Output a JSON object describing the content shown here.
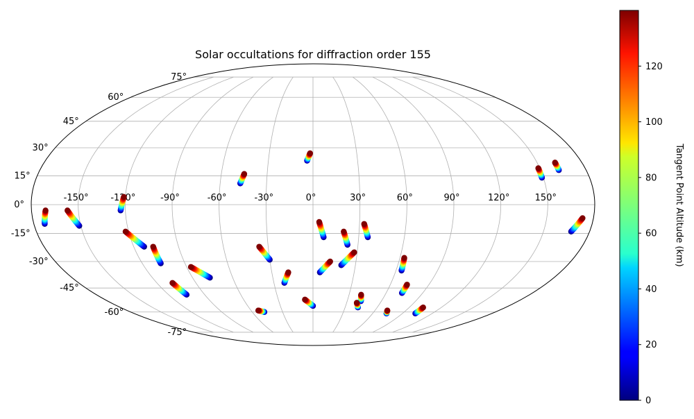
{
  "chart_data": {
    "type": "scatter",
    "projection": "mollweide",
    "title": "Solar occultations for diffraction order 155",
    "lon_ticks": [
      "-150°",
      "-120°",
      "-90°",
      "-60°",
      "-30°",
      "0°",
      "30°",
      "60°",
      "90°",
      "120°",
      "150°"
    ],
    "lon_tick_values": [
      -150,
      -120,
      -90,
      -60,
      -30,
      0,
      30,
      60,
      90,
      120,
      150
    ],
    "lat_ticks": [
      "75°",
      "60°",
      "45°",
      "30°",
      "15°",
      "0°",
      "-15°",
      "-30°",
      "-45°",
      "-60°",
      "-75°"
    ],
    "lat_tick_values": [
      75,
      60,
      45,
      30,
      15,
      0,
      -15,
      -30,
      -45,
      -60,
      -75
    ],
    "grid": true,
    "colorbar": {
      "label": "Tangent Point Altitude (km)",
      "min": 0,
      "max": 140,
      "ticks": [
        "0",
        "20",
        "40",
        "60",
        "80",
        "100",
        "120"
      ],
      "tick_values": [
        0,
        20,
        40,
        60,
        80,
        100,
        120
      ],
      "colormap": "jet"
    },
    "occultations": [
      {
        "lon_start": -171,
        "lat_start": -3,
        "lon_end": -173,
        "lat_end": -10
      },
      {
        "lon_start": -157,
        "lat_start": -3,
        "lon_end": -151,
        "lat_end": -11
      },
      {
        "lon_start": -121,
        "lat_start": 4,
        "lon_end": -123,
        "lat_end": -3
      },
      {
        "lon_start": -122,
        "lat_start": -14,
        "lon_end": -113,
        "lat_end": -22
      },
      {
        "lon_start": -107,
        "lat_start": -22,
        "lon_end": -107,
        "lat_end": -31
      },
      {
        "lon_start": -108,
        "lat_start": -42,
        "lon_end": -105,
        "lat_end": -49
      },
      {
        "lon_start": -87,
        "lat_start": -33,
        "lon_end": -77,
        "lat_end": -39
      },
      {
        "lon_start": -45,
        "lat_start": 16,
        "lon_end": -47,
        "lat_end": 11
      },
      {
        "lon_start": -36,
        "lat_start": -22,
        "lon_end": -30,
        "lat_end": -29
      },
      {
        "lon_start": -18,
        "lat_start": -36,
        "lon_end": -22,
        "lat_end": -42
      },
      {
        "lon_start": -53,
        "lat_start": -59,
        "lon_end": -48,
        "lat_end": -60
      },
      {
        "lon_start": -2,
        "lat_start": 27,
        "lon_end": -4,
        "lat_end": 23
      },
      {
        "lon_start": -7,
        "lat_start": -52,
        "lon_end": 0,
        "lat_end": -56
      },
      {
        "lon_start": 4,
        "lat_start": -9,
        "lon_end": 7,
        "lat_end": -17
      },
      {
        "lon_start": 12,
        "lat_start": -30,
        "lon_end": 5,
        "lat_end": -36
      },
      {
        "lon_start": 20,
        "lat_start": -14,
        "lon_end": 23,
        "lat_end": -21
      },
      {
        "lon_start": 28,
        "lat_start": -25,
        "lon_end": 20,
        "lat_end": -32
      },
      {
        "lon_start": 33,
        "lat_start": -10,
        "lon_end": 36,
        "lat_end": -17
      },
      {
        "lon_start": 40,
        "lat_start": -49,
        "lon_end": 42,
        "lat_end": -53
      },
      {
        "lon_start": 39,
        "lat_start": -54,
        "lon_end": 42,
        "lat_end": -57
      },
      {
        "lon_start": 63,
        "lat_start": -28,
        "lon_end": 64,
        "lat_end": -35
      },
      {
        "lon_start": 73,
        "lat_start": -43,
        "lon_end": 73,
        "lat_end": -48
      },
      {
        "lon_start": 72,
        "lat_start": -59,
        "lon_end": 74,
        "lat_end": -61
      },
      {
        "lon_start": 103,
        "lat_start": -57,
        "lon_end": 103,
        "lat_end": -61
      },
      {
        "lon_start": 149,
        "lat_start": 19,
        "lon_end": 149,
        "lat_end": 14
      },
      {
        "lon_start": 162,
        "lat_start": 22,
        "lon_end": 162,
        "lat_end": 18
      },
      {
        "lon_start": 173,
        "lat_start": -7,
        "lon_end": 168,
        "lat_end": -14
      }
    ]
  }
}
